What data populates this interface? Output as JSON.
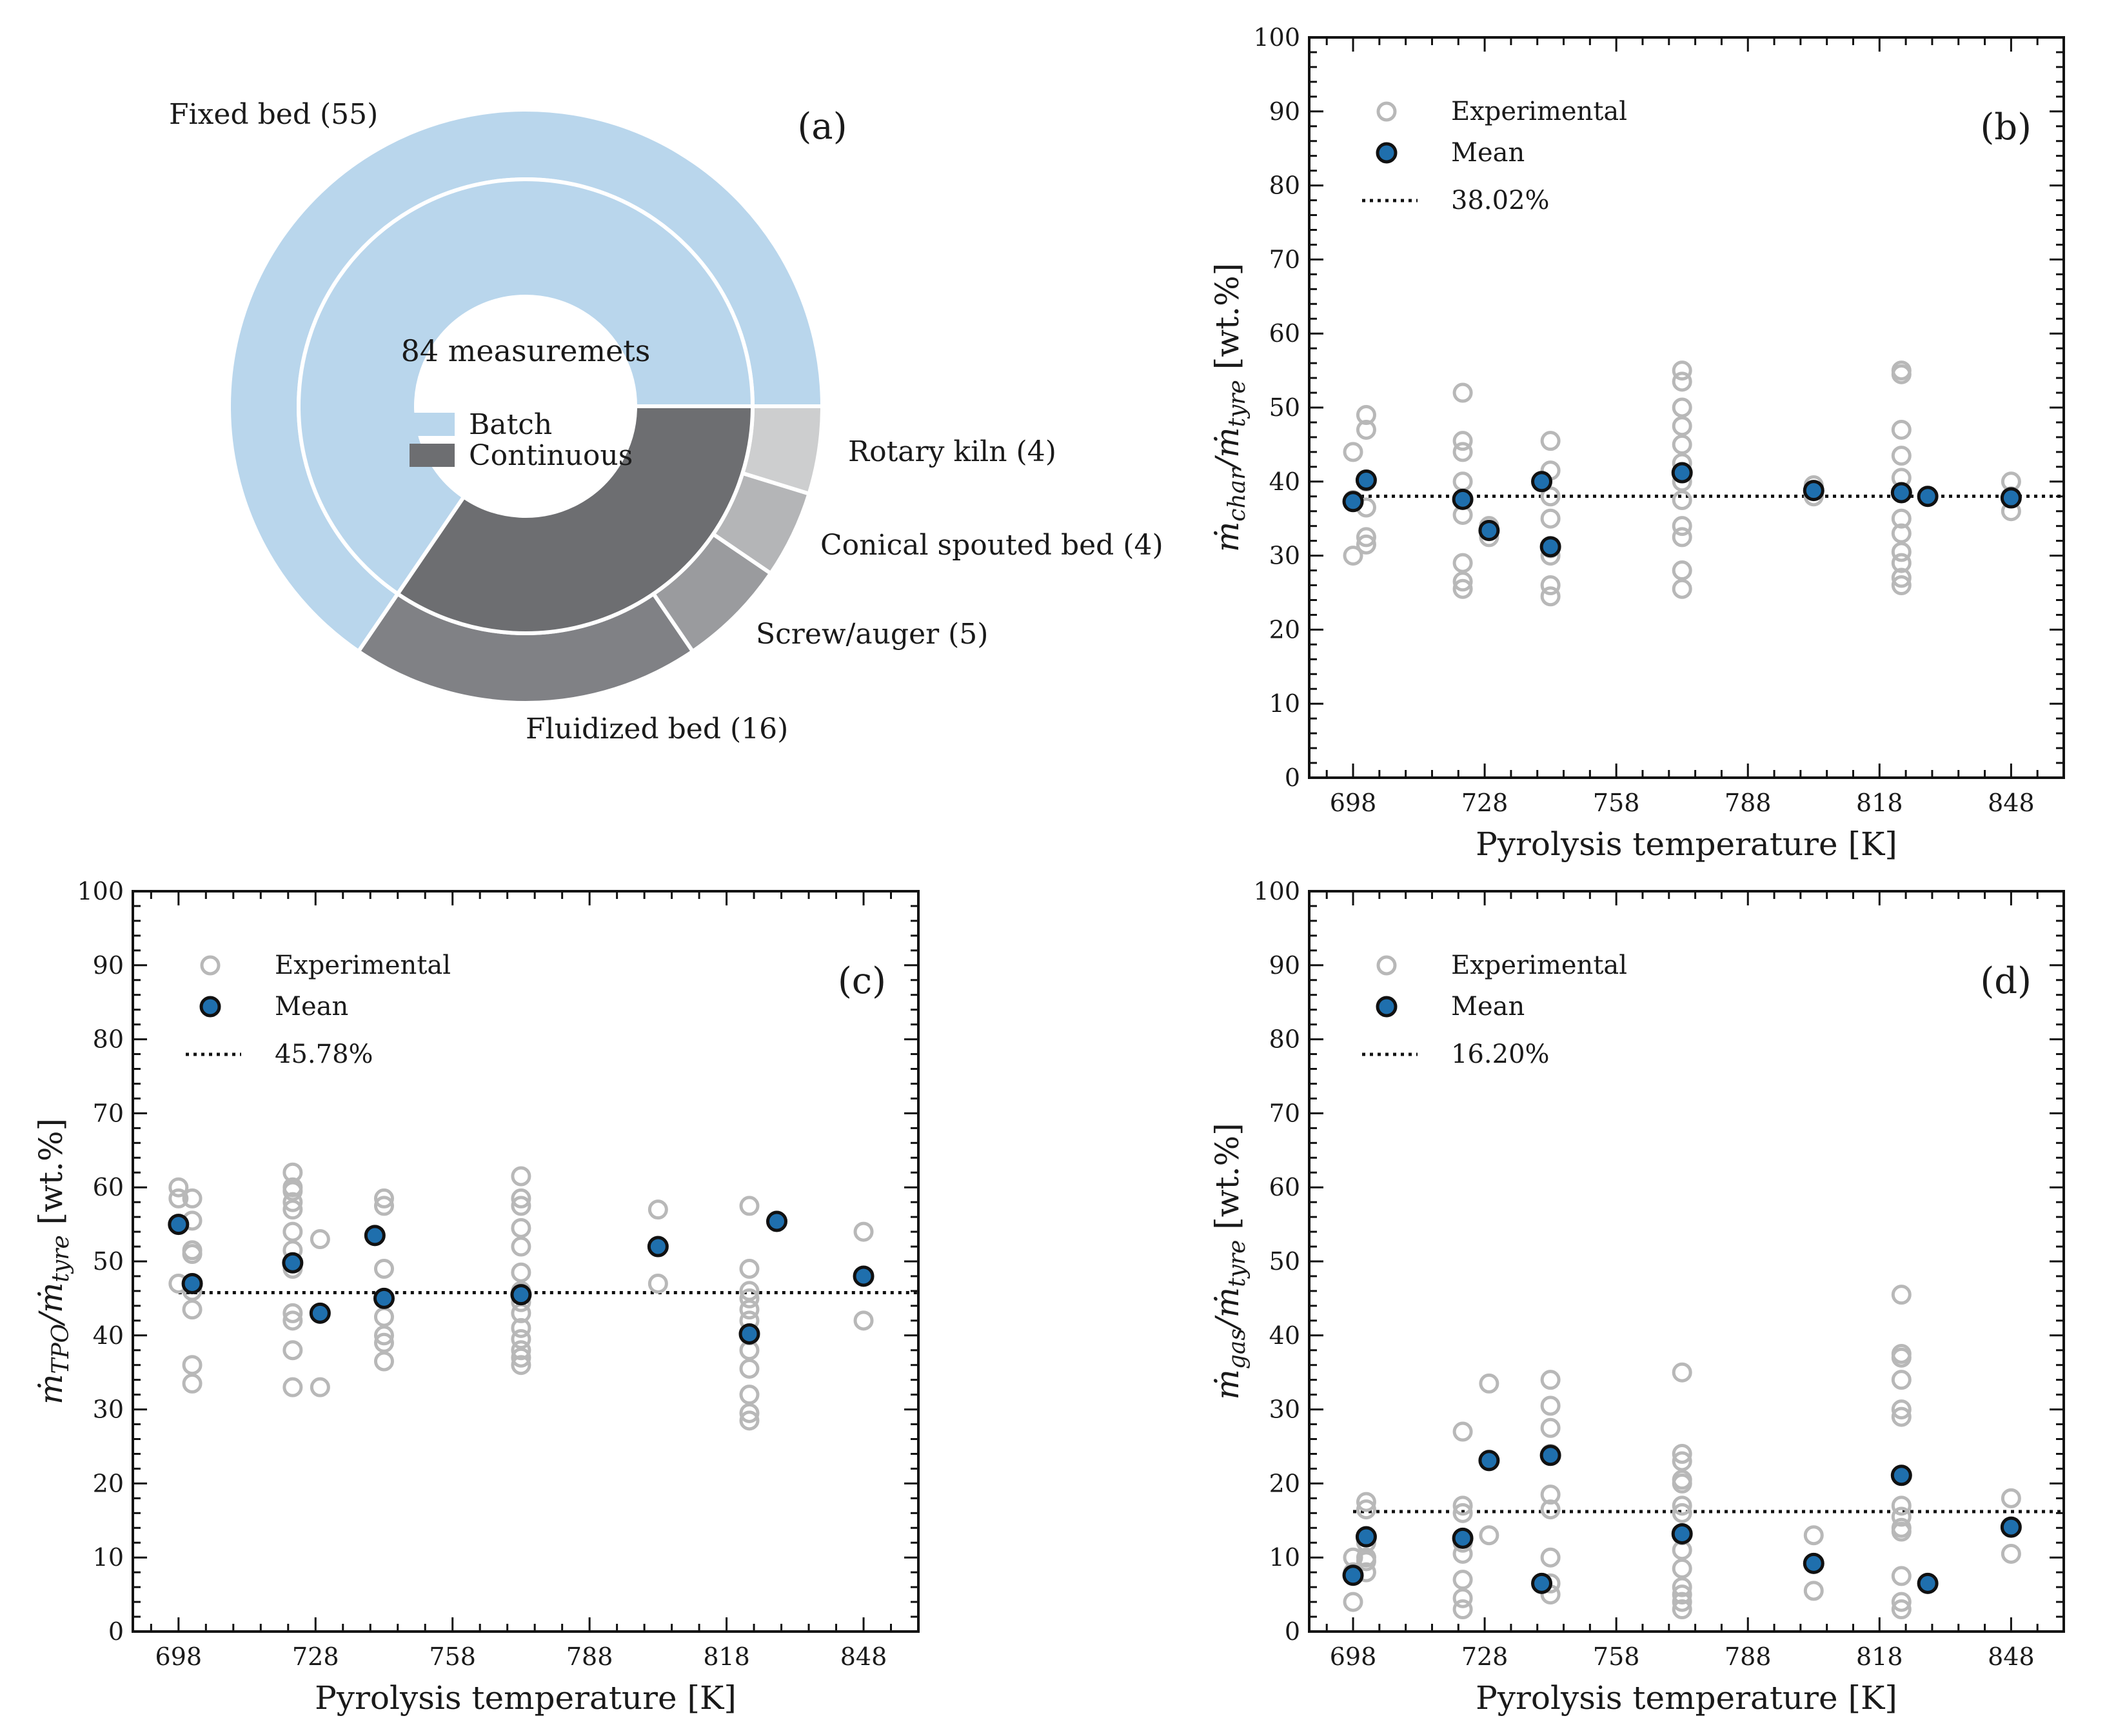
{
  "colors": {
    "batch": "#b9d6ec",
    "continuous_inner": "#6d6e71",
    "fluidized": "#808185",
    "screw": "#9a9b9e",
    "conical": "#b4b5b7",
    "rotary": "#cdcecf",
    "experimental": "#b8b8b8",
    "mean_fill": "#1f6fad",
    "mean_edge": "#111111"
  },
  "chart_data": [
    {
      "panel": "(a)",
      "type": "pie",
      "center_text": "84 measuremets",
      "legend": [
        "Batch",
        "Continuous"
      ],
      "inner_ring": [
        {
          "name": "Batch",
          "value": 55
        },
        {
          "name": "Continuous",
          "value": 29
        }
      ],
      "outer_ring": [
        {
          "name": "Fixed bed",
          "value": 55,
          "label": "Fixed bed (55)"
        },
        {
          "name": "Fluidized bed",
          "value": 16,
          "label": "Fluidized bed (16)"
        },
        {
          "name": "Screw/auger",
          "value": 5,
          "label": "Screw/auger (5)"
        },
        {
          "name": "Conical spouted bed",
          "value": 4,
          "label": "Conical spouted bed (4)"
        },
        {
          "name": "Rotary kiln",
          "value": 4,
          "label": "Rotary kiln (4)"
        }
      ]
    },
    {
      "panel": "(b)",
      "type": "scatter",
      "xlabel": "Pyrolysis temperature [K]",
      "ylabel": "ṁ_char / ṁ_tyre [wt.%]",
      "ylabel_main": "ṁ",
      "ylabel_sub1": "char",
      "ylabel_mid": "/ṁ",
      "ylabel_sub2": "tyre",
      "ylabel_unit": " [wt.%]",
      "xlim": [
        688,
        860
      ],
      "ylim": [
        0,
        100
      ],
      "xticks": [
        "698",
        "728",
        "758",
        "788",
        "818",
        "848"
      ],
      "xtick_values": [
        698,
        728,
        758,
        788,
        818,
        848
      ],
      "yticks": [
        "0",
        "10",
        "20",
        "30",
        "40",
        "50",
        "60",
        "70",
        "80",
        "90",
        "100"
      ],
      "legend": [
        "Experimental",
        "Mean",
        "38.02%"
      ],
      "mean_line": 38.02,
      "experimental": [
        [
          698,
          44
        ],
        [
          698,
          37.5
        ],
        [
          698,
          30
        ],
        [
          701,
          49
        ],
        [
          701,
          47
        ],
        [
          701,
          40
        ],
        [
          701,
          36.5
        ],
        [
          701,
          32.5
        ],
        [
          701,
          31.5
        ],
        [
          723,
          52
        ],
        [
          723,
          45.5
        ],
        [
          723,
          44
        ],
        [
          723,
          40
        ],
        [
          723,
          35.5
        ],
        [
          723,
          29
        ],
        [
          723,
          26.5
        ],
        [
          723,
          25.5
        ],
        [
          729,
          34
        ],
        [
          729,
          33.5
        ],
        [
          729,
          32.5
        ],
        [
          741,
          40
        ],
        [
          743,
          45.5
        ],
        [
          743,
          41.5
        ],
        [
          743,
          38
        ],
        [
          743,
          35
        ],
        [
          743,
          31
        ],
        [
          743,
          30
        ],
        [
          743,
          26
        ],
        [
          743,
          24.5
        ],
        [
          773,
          55
        ],
        [
          773,
          53.5
        ],
        [
          773,
          50
        ],
        [
          773,
          47.5
        ],
        [
          773,
          45
        ],
        [
          773,
          42.5
        ],
        [
          773,
          40
        ],
        [
          773,
          37.5
        ],
        [
          773,
          34
        ],
        [
          773,
          32.5
        ],
        [
          773,
          28
        ],
        [
          773,
          25.5
        ],
        [
          803,
          39.5
        ],
        [
          803,
          38
        ],
        [
          823,
          55
        ],
        [
          823,
          54.5
        ],
        [
          823,
          47
        ],
        [
          823,
          43.5
        ],
        [
          823,
          40.5
        ],
        [
          823,
          38.5
        ],
        [
          823,
          35
        ],
        [
          823,
          33
        ],
        [
          823,
          30.5
        ],
        [
          823,
          29
        ],
        [
          823,
          27
        ],
        [
          823,
          26
        ],
        [
          829,
          38
        ],
        [
          848,
          40
        ],
        [
          848,
          38
        ],
        [
          848,
          36
        ]
      ],
      "mean": [
        [
          698,
          37.3
        ],
        [
          701,
          40.2
        ],
        [
          723,
          37.6
        ],
        [
          729,
          33.4
        ],
        [
          741,
          40
        ],
        [
          743,
          31.2
        ],
        [
          773,
          41.2
        ],
        [
          803,
          38.8
        ],
        [
          823,
          38.5
        ],
        [
          829,
          38
        ],
        [
          848,
          37.8
        ]
      ],
      "panel_label": "(b)"
    },
    {
      "panel": "(c)",
      "type": "scatter",
      "xlabel": "Pyrolysis temperature [K]",
      "ylabel": "ṁ_TPO / ṁ_tyre [wt.%]",
      "ylabel_main": "ṁ",
      "ylabel_sub1": "TPO",
      "ylabel_mid": "/ṁ",
      "ylabel_sub2": "tyre",
      "ylabel_unit": " [wt.%]",
      "xlim": [
        688,
        860
      ],
      "ylim": [
        0,
        100
      ],
      "xticks": [
        "698",
        "728",
        "758",
        "788",
        "818",
        "848"
      ],
      "xtick_values": [
        698,
        728,
        758,
        788,
        818,
        848
      ],
      "yticks": [
        "0",
        "10",
        "20",
        "30",
        "40",
        "50",
        "60",
        "70",
        "80",
        "90",
        "100"
      ],
      "legend": [
        "Experimental",
        "Mean",
        "45.78%"
      ],
      "mean_line": 45.78,
      "experimental": [
        [
          698,
          60
        ],
        [
          698,
          58.5
        ],
        [
          698,
          55
        ],
        [
          698,
          47
        ],
        [
          701,
          58.5
        ],
        [
          701,
          55.5
        ],
        [
          701,
          51.5
        ],
        [
          701,
          51
        ],
        [
          701,
          46
        ],
        [
          701,
          43.5
        ],
        [
          701,
          36
        ],
        [
          701,
          33.5
        ],
        [
          723,
          62
        ],
        [
          723,
          60
        ],
        [
          723,
          59.5
        ],
        [
          723,
          58
        ],
        [
          723,
          57
        ],
        [
          723,
          54
        ],
        [
          723,
          51.5
        ],
        [
          723,
          49
        ],
        [
          723,
          43
        ],
        [
          723,
          42
        ],
        [
          723,
          38
        ],
        [
          723,
          33
        ],
        [
          729,
          53
        ],
        [
          729,
          33
        ],
        [
          741,
          53.5
        ],
        [
          743,
          58.5
        ],
        [
          743,
          57.5
        ],
        [
          743,
          49
        ],
        [
          743,
          45
        ],
        [
          743,
          42.5
        ],
        [
          743,
          40
        ],
        [
          743,
          39
        ],
        [
          743,
          36.5
        ],
        [
          773,
          61.5
        ],
        [
          773,
          58.5
        ],
        [
          773,
          57.5
        ],
        [
          773,
          54.5
        ],
        [
          773,
          52
        ],
        [
          773,
          48.5
        ],
        [
          773,
          46
        ],
        [
          773,
          44.5
        ],
        [
          773,
          43
        ],
        [
          773,
          41
        ],
        [
          773,
          39.5
        ],
        [
          773,
          38
        ],
        [
          773,
          37
        ],
        [
          773,
          36
        ],
        [
          803,
          57
        ],
        [
          803,
          47
        ],
        [
          823,
          57.5
        ],
        [
          823,
          49
        ],
        [
          823,
          46
        ],
        [
          823,
          45
        ],
        [
          823,
          43.5
        ],
        [
          823,
          42
        ],
        [
          823,
          40
        ],
        [
          823,
          38
        ],
        [
          823,
          35.5
        ],
        [
          823,
          32
        ],
        [
          823,
          29.5
        ],
        [
          823,
          28.5
        ],
        [
          829,
          55.5
        ],
        [
          848,
          54
        ],
        [
          848,
          42
        ]
      ],
      "mean": [
        [
          698,
          55
        ],
        [
          701,
          47
        ],
        [
          723,
          49.8
        ],
        [
          729,
          43
        ],
        [
          741,
          53.5
        ],
        [
          743,
          45
        ],
        [
          773,
          45.5
        ],
        [
          803,
          52
        ],
        [
          823,
          40.2
        ],
        [
          829,
          55.4
        ],
        [
          848,
          48
        ]
      ],
      "panel_label": "(c)"
    },
    {
      "panel": "(d)",
      "type": "scatter",
      "xlabel": "Pyrolysis temperature [K]",
      "ylabel": "ṁ_gas / ṁ_tyre [wt.%]",
      "ylabel_main": "ṁ",
      "ylabel_sub1": "gas",
      "ylabel_mid": "/ṁ",
      "ylabel_sub2": "tyre",
      "ylabel_unit": " [wt.%]",
      "xlim": [
        688,
        860
      ],
      "ylim": [
        0,
        100
      ],
      "xticks": [
        "698",
        "728",
        "758",
        "788",
        "818",
        "848"
      ],
      "xtick_values": [
        698,
        728,
        758,
        788,
        818,
        848
      ],
      "yticks": [
        "0",
        "10",
        "20",
        "30",
        "40",
        "50",
        "60",
        "70",
        "80",
        "90",
        "100"
      ],
      "legend": [
        "Experimental",
        "Mean",
        "16.20%"
      ],
      "mean_line": 16.2,
      "experimental": [
        [
          698,
          10
        ],
        [
          698,
          8
        ],
        [
          698,
          4
        ],
        [
          701,
          17.5
        ],
        [
          701,
          16.5
        ],
        [
          701,
          12
        ],
        [
          701,
          10
        ],
        [
          701,
          9.5
        ],
        [
          701,
          8
        ],
        [
          723,
          27
        ],
        [
          723,
          17
        ],
        [
          723,
          16
        ],
        [
          723,
          12
        ],
        [
          723,
          10.5
        ],
        [
          723,
          7
        ],
        [
          723,
          4.5
        ],
        [
          723,
          3
        ],
        [
          729,
          33.5
        ],
        [
          729,
          23
        ],
        [
          729,
          13
        ],
        [
          741,
          6.5
        ],
        [
          743,
          34
        ],
        [
          743,
          30.5
        ],
        [
          743,
          27.5
        ],
        [
          743,
          24
        ],
        [
          743,
          18.5
        ],
        [
          743,
          16.5
        ],
        [
          743,
          10
        ],
        [
          743,
          6.5
        ],
        [
          743,
          5
        ],
        [
          773,
          35
        ],
        [
          773,
          24
        ],
        [
          773,
          23
        ],
        [
          773,
          20.5
        ],
        [
          773,
          20
        ],
        [
          773,
          17
        ],
        [
          773,
          16
        ],
        [
          773,
          13
        ],
        [
          773,
          11
        ],
        [
          773,
          8.5
        ],
        [
          773,
          6
        ],
        [
          773,
          5
        ],
        [
          773,
          4
        ],
        [
          773,
          3
        ],
        [
          803,
          13
        ],
        [
          803,
          5.5
        ],
        [
          823,
          45.5
        ],
        [
          823,
          37.5
        ],
        [
          823,
          37
        ],
        [
          823,
          34
        ],
        [
          823,
          30
        ],
        [
          823,
          29
        ],
        [
          823,
          17
        ],
        [
          823,
          15.5
        ],
        [
          823,
          14
        ],
        [
          823,
          13.5
        ],
        [
          823,
          7.5
        ],
        [
          823,
          4
        ],
        [
          823,
          3
        ],
        [
          829,
          6.5
        ],
        [
          848,
          18
        ],
        [
          848,
          10.5
        ]
      ],
      "mean": [
        [
          698,
          7.6
        ],
        [
          701,
          12.8
        ],
        [
          723,
          12.6
        ],
        [
          729,
          23.1
        ],
        [
          741,
          6.5
        ],
        [
          743,
          23.8
        ],
        [
          773,
          13.2
        ],
        [
          803,
          9.2
        ],
        [
          823,
          21.1
        ],
        [
          829,
          6.5
        ],
        [
          848,
          14.1
        ]
      ],
      "panel_label": "(d)"
    }
  ]
}
